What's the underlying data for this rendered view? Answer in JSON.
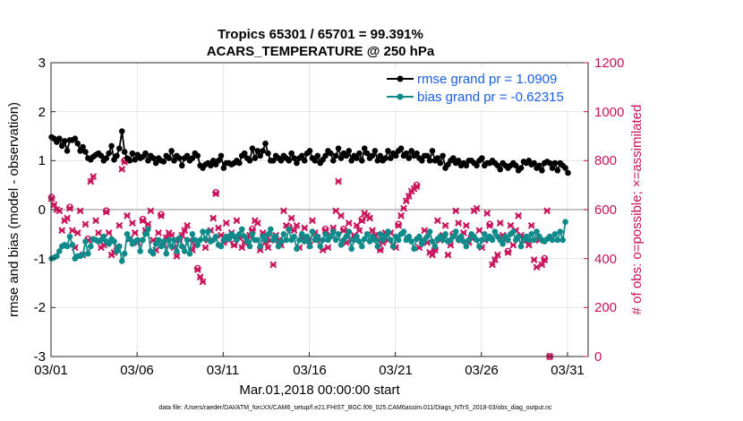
{
  "chart_data": {
    "type": "line",
    "title": "Tropics 65301 / 65701 = 99.391%",
    "subtitle": "ACARS_TEMPERATURE @ 250 hPa",
    "xlabel": "Mar.01,2018 00:00:00 start",
    "ylabel_left": "rmse and bias (model - observation)",
    "ylabel_right": "# of obs: o=possible; ×=assimilated",
    "footnote": "data file: /Users/raeder/DAI/ATM_forcXX/CAM6_setup/f.e21.FHIST_BGC.f09_025.CAM6assim.011/Diags_NTrS_2018-03/obs_diag_output.nc",
    "x_tick_labels": [
      "03/01",
      "03/06",
      "03/11",
      "03/16",
      "03/21",
      "03/26",
      "03/31"
    ],
    "x_tick_values": [
      1,
      6,
      11,
      16,
      21,
      26,
      31
    ],
    "xlim": [
      1,
      32.2
    ],
    "ylim_left": [
      -3,
      3
    ],
    "y_ticks_left": [
      -3,
      -2,
      -1,
      0,
      1,
      2,
      3
    ],
    "ylim_right": [
      0,
      1200
    ],
    "y_ticks_right": [
      0,
      200,
      400,
      600,
      800,
      1000,
      1200
    ],
    "grid": true,
    "legend_position": "top-right",
    "colors": {
      "rmse": "#000000",
      "bias": "#0f8a8a",
      "obs": "#c8135a",
      "legend_text": "#1a5fe0",
      "zero_line": "#b0b0b0"
    },
    "series": [
      {
        "name": "rmse grand pr = 1.0909",
        "axis": "left",
        "values": [
          1.48,
          1.45,
          1.38,
          1.45,
          1.3,
          1.4,
          1.2,
          1.42,
          1.42,
          1.45,
          1.35,
          1.2,
          1.28,
          1.18,
          1.05,
          1.02,
          1.08,
          1.12,
          1.15,
          1.1,
          1.0,
          1.05,
          1.15,
          1.3,
          1.02,
          1.1,
          1.25,
          1.6,
          1.18,
          1.05,
          1.0,
          1.15,
          1.02,
          1.12,
          1.05,
          1.08,
          1.15,
          1.0,
          1.1,
          1.05,
          0.95,
          1.05,
          1.0,
          0.98,
          1.1,
          1.05,
          1.2,
          1.0,
          1.1,
          1.05,
          0.9,
          1.05,
          1.1,
          1.0,
          1.05,
          1.15,
          1.1,
          0.9,
          0.85,
          0.92,
          0.95,
          0.9,
          1.0,
          0.92,
          1.0,
          1.1,
          0.85,
          0.95,
          0.95,
          0.92,
          0.95,
          1.0,
          0.95,
          1.1,
          1.15,
          1.05,
          1.0,
          1.25,
          1.05,
          1.2,
          1.1,
          1.2,
          1.35,
          1.15,
          1.0,
          1.0,
          1.1,
          1.05,
          1.0,
          1.1,
          1.05,
          1.0,
          1.15,
          1.05,
          0.95,
          1.05,
          1.1,
          1.0,
          1.15,
          1.2,
          1.05,
          1.0,
          1.1,
          0.95,
          1.02,
          1.1,
          1.2,
          1.15,
          1.0,
          1.1,
          1.25,
          1.05,
          1.15,
          1.1,
          1.2,
          1.0,
          1.1,
          1.05,
          1.15,
          1.0,
          1.25,
          1.15,
          1.05,
          1.1,
          1.2,
          1.0,
          1.1,
          1.0,
          1.05,
          1.2,
          1.05,
          1.15,
          1.1,
          1.2,
          1.25,
          1.1,
          1.15,
          1.05,
          1.2,
          1.1,
          1.15,
          1.05,
          1.0,
          1.1,
          1.1,
          1.0,
          1.2,
          1.0,
          1.05,
          0.95,
          1.1,
          0.85,
          0.92,
          1.0,
          1.05,
          0.95,
          1.0,
          0.9,
          0.95,
          0.9,
          1.0,
          1.0,
          0.95,
          0.9,
          1.0,
          1.05,
          0.9,
          0.95,
          0.95,
          1.0,
          0.95,
          0.9,
          0.82,
          0.95,
          0.9,
          0.85,
          0.9,
          0.95,
          0.9,
          0.8,
          0.85,
          0.98,
          0.95,
          1.0,
          0.92,
          0.95,
          0.85,
          0.9,
          0.8,
          0.95,
          0.98,
          0.95,
          0.85,
          0.95,
          0.8,
          0.95,
          0.9,
          0.85,
          0.75
        ]
      },
      {
        "name": "bias grand pr = -0.62315",
        "axis": "left",
        "values": [
          -1.0,
          -0.98,
          -0.95,
          -0.85,
          -0.75,
          -0.72,
          -0.75,
          -0.55,
          -0.72,
          -1.0,
          -0.95,
          -0.95,
          -0.92,
          -0.65,
          -0.9,
          -0.75,
          -0.6,
          -0.62,
          -0.65,
          -0.62,
          -0.55,
          -0.65,
          -0.7,
          -0.6,
          -0.65,
          -0.85,
          -0.75,
          -1.05,
          -0.9,
          -0.5,
          -0.6,
          -0.7,
          -0.65,
          -0.62,
          -0.85,
          -0.62,
          -0.5,
          -0.4,
          -0.85,
          -0.9,
          -0.7,
          -0.62,
          -0.75,
          -0.65,
          -0.9,
          -0.62,
          -0.75,
          -0.62,
          -0.85,
          -0.58,
          -0.75,
          -0.85,
          -0.62,
          -0.9,
          -0.5,
          -0.62,
          -0.72,
          -0.62,
          -0.45,
          -0.6,
          -0.45,
          -0.65,
          -0.62,
          -0.55,
          -0.72,
          -0.75,
          -0.62,
          -0.55,
          -0.6,
          -0.5,
          -0.55,
          -0.62,
          -0.5,
          -0.4,
          -0.55,
          -0.65,
          -0.75,
          -0.5,
          -0.62,
          -0.62,
          -0.75,
          -0.55,
          -0.62,
          -0.5,
          -0.4,
          -0.62,
          -0.55,
          -0.75,
          -0.65,
          -0.5,
          -0.62,
          -0.4,
          -0.62,
          -0.55,
          -0.8,
          -0.62,
          -0.5,
          -0.65,
          -0.55,
          -0.75,
          -0.45,
          -0.62,
          -0.55,
          -0.75,
          -0.62,
          -0.5,
          -0.62,
          -0.55,
          -0.45,
          -0.62,
          -0.5,
          -0.72,
          -0.62,
          -0.55,
          -0.45,
          -0.8,
          -0.62,
          -0.55,
          -0.65,
          -0.75,
          -0.6,
          -0.5,
          -0.65,
          -0.55,
          -0.62,
          -0.75,
          -0.5,
          -0.62,
          -0.55,
          -0.45,
          -0.62,
          -0.75,
          -0.55,
          -0.62,
          -0.5,
          -0.45,
          -0.62,
          -0.55,
          -0.65,
          -0.8,
          -0.6,
          -0.55,
          -0.7,
          -0.62,
          -0.55,
          -0.45,
          -0.65,
          -0.75,
          -0.6,
          -0.55,
          -0.62,
          -0.5,
          -0.65,
          -0.62,
          -0.55,
          -0.45,
          -0.62,
          -0.55,
          -0.65,
          -0.75,
          -0.62,
          -0.5,
          -0.55,
          -0.62,
          -0.75,
          -0.62,
          -0.5,
          -0.6,
          -0.55,
          -0.62,
          -0.45,
          -0.55,
          -0.62,
          -0.7,
          -0.55,
          -0.62,
          -0.5,
          -0.45,
          -0.62,
          -0.55,
          -0.75,
          -0.62,
          -0.55,
          -0.62,
          -0.5,
          -0.62,
          -0.45,
          -0.55,
          -0.62,
          -0.65,
          -0.6,
          -0.55,
          -0.62,
          -0.5,
          -0.62,
          -0.45,
          -0.62,
          -0.25
        ]
      },
      {
        "name": "possible obs",
        "axis": "right",
        "marker": "o",
        "values": [
          650,
          625,
          605,
          600,
          520,
          560,
          570,
          610,
          520,
          450,
          510,
          600,
          420,
          545,
          480,
          720,
          740,
          560,
          510,
          450,
          460,
          595,
          510,
          420,
          430,
          455,
          540,
          770,
          800,
          580,
          485,
          550,
          510,
          470,
          480,
          560,
          520,
          545,
          600,
          480,
          440,
          510,
          580,
          460,
          490,
          510,
          500,
          450,
          415,
          480,
          500,
          520,
          540,
          480,
          440,
          460,
          360,
          330,
          310,
          450,
          480,
          520,
          570,
          670,
          530,
          500,
          470,
          550,
          480,
          510,
          460,
          560,
          490,
          450,
          470,
          480,
          500,
          520,
          560,
          550,
          440,
          510,
          470,
          450,
          480,
          380,
          500,
          480,
          460,
          600,
          540,
          530,
          570,
          520,
          540,
          450,
          490,
          530,
          480,
          460,
          560,
          510,
          490,
          480,
          440,
          520,
          450,
          500,
          530,
          600,
          720,
          580,
          520,
          470,
          550,
          480,
          500,
          540,
          520,
          560,
          590,
          580,
          570,
          520,
          500,
          480,
          440,
          470,
          510,
          480,
          510,
          460,
          450,
          540,
          580,
          610,
          640,
          660,
          680,
          690,
          700,
          450,
          480,
          520,
          470,
          430,
          420,
          440,
          560,
          480,
          500,
          540,
          420,
          460,
          500,
          600,
          550,
          480,
          510,
          540,
          470,
          490,
          600,
          610,
          520,
          450,
          480,
          590,
          540,
          380,
          400,
          420,
          550,
          500,
          480,
          430,
          540,
          460,
          520,
          580,
          500,
          480,
          480,
          460,
          540,
          400,
          370,
          480,
          380,
          400,
          600,
          0
        ]
      },
      {
        "name": "assimilated obs",
        "axis": "right",
        "marker": "x",
        "values": [
          645,
          620,
          600,
          595,
          515,
          555,
          565,
          605,
          515,
          445,
          505,
          595,
          415,
          540,
          475,
          715,
          735,
          555,
          505,
          445,
          455,
          590,
          505,
          415,
          425,
          450,
          535,
          765,
          795,
          575,
          480,
          545,
          505,
          465,
          475,
          555,
          515,
          540,
          595,
          475,
          435,
          505,
          575,
          455,
          485,
          505,
          495,
          445,
          410,
          475,
          495,
          515,
          535,
          475,
          435,
          455,
          355,
          325,
          305,
          445,
          475,
          515,
          565,
          665,
          525,
          495,
          465,
          545,
          475,
          505,
          455,
          555,
          485,
          445,
          465,
          475,
          495,
          515,
          555,
          545,
          435,
          505,
          465,
          445,
          475,
          375,
          495,
          475,
          455,
          595,
          535,
          525,
          565,
          515,
          535,
          445,
          485,
          525,
          475,
          455,
          555,
          505,
          485,
          475,
          435,
          515,
          445,
          495,
          525,
          595,
          715,
          575,
          515,
          465,
          545,
          475,
          495,
          535,
          515,
          555,
          585,
          575,
          565,
          515,
          495,
          475,
          435,
          465,
          505,
          475,
          505,
          455,
          445,
          535,
          575,
          605,
          635,
          655,
          675,
          685,
          695,
          445,
          475,
          515,
          465,
          425,
          415,
          435,
          555,
          475,
          495,
          535,
          415,
          455,
          495,
          595,
          545,
          475,
          505,
          535,
          465,
          485,
          595,
          605,
          515,
          445,
          475,
          585,
          535,
          375,
          395,
          415,
          545,
          495,
          475,
          425,
          535,
          455,
          515,
          575,
          495,
          475,
          475,
          455,
          535,
          395,
          365,
          475,
          375,
          395,
          595,
          0
        ]
      }
    ]
  }
}
